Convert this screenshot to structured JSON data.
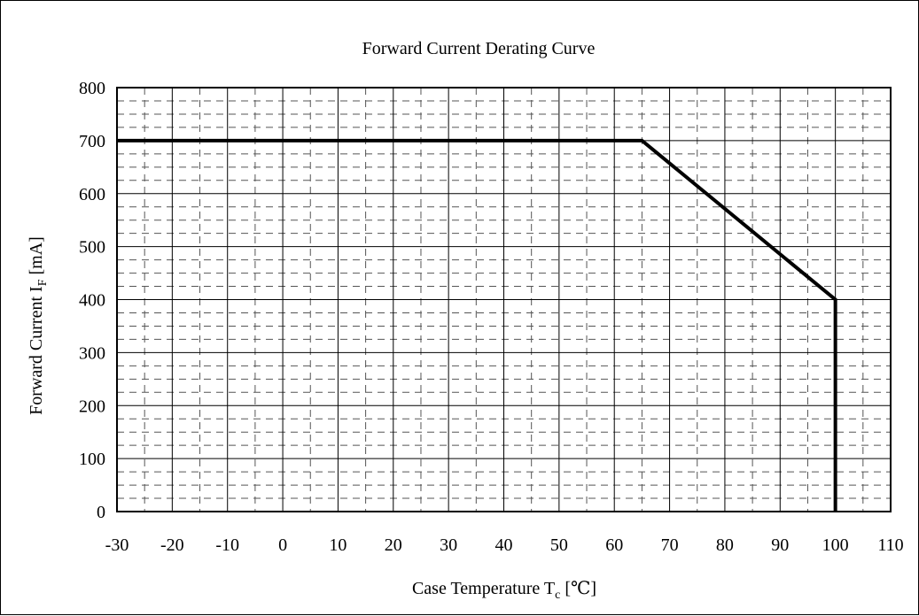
{
  "chart_data": {
    "type": "line",
    "title": "Forward Current Derating Curve",
    "xlabel": {
      "main": "Case Temperature T",
      "sub": "c",
      "unit": " [℃]"
    },
    "ylabel": {
      "main": "Forward Current I",
      "sub": "F",
      "unit": " [mA]"
    },
    "xlim": [
      -30,
      110
    ],
    "ylim": [
      0,
      800
    ],
    "x_ticks": [
      -30,
      -20,
      -10,
      0,
      10,
      20,
      30,
      40,
      50,
      60,
      70,
      80,
      90,
      100,
      110
    ],
    "y_ticks": [
      0,
      100,
      200,
      300,
      400,
      500,
      600,
      700,
      800
    ],
    "x_minor_step": 5,
    "y_minor_step": 25,
    "grid": true,
    "series": [
      {
        "color": "#000000",
        "points": [
          {
            "x": -30,
            "y": 700
          },
          {
            "x": 65,
            "y": 700
          },
          {
            "x": 100,
            "y": 400
          },
          {
            "x": 100,
            "y": 0
          }
        ]
      }
    ]
  }
}
